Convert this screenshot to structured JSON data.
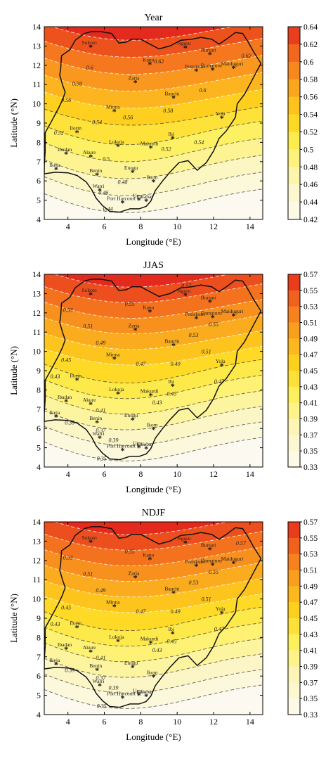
{
  "axes": {
    "xlabel": "Longitude (°E)",
    "ylabel": "Latitude (°N)",
    "x_ticks": [
      "4",
      "6",
      "8",
      "10",
      "12",
      "14"
    ],
    "y_ticks": [
      "4",
      "5",
      "6",
      "7",
      "8",
      "9",
      "10",
      "11",
      "12",
      "13",
      "14"
    ],
    "xlim": [
      2.7,
      14.7
    ],
    "ylim": [
      4,
      14
    ]
  },
  "cities": [
    {
      "name": "Sokoto",
      "lon": 5.25,
      "lat": 12.95
    },
    {
      "name": "Nguru",
      "lon": 10.45,
      "lat": 12.9
    },
    {
      "name": "Bursari",
      "lon": 11.8,
      "lat": 12.55
    },
    {
      "name": "Kano",
      "lon": 8.5,
      "lat": 12.05
    },
    {
      "name": "Potiskum",
      "lon": 11.05,
      "lat": 11.7
    },
    {
      "name": "Damaturu",
      "lon": 11.95,
      "lat": 11.75
    },
    {
      "name": "Maiduguri",
      "lon": 13.1,
      "lat": 11.85
    },
    {
      "name": "Zaria",
      "lon": 7.7,
      "lat": 11.1
    },
    {
      "name": "Bauchi",
      "lon": 9.8,
      "lat": 10.3
    },
    {
      "name": "Minna",
      "lon": 6.55,
      "lat": 9.6
    },
    {
      "name": "Yola",
      "lon": 12.45,
      "lat": 9.25
    },
    {
      "name": "Ilorin",
      "lon": 4.5,
      "lat": 8.5
    },
    {
      "name": "Ibi",
      "lon": 9.75,
      "lat": 8.2
    },
    {
      "name": "Lokoja",
      "lon": 6.75,
      "lat": 7.8
    },
    {
      "name": "Makurdi",
      "lon": 8.55,
      "lat": 7.7
    },
    {
      "name": "Ibadan",
      "lon": 3.9,
      "lat": 7.4
    },
    {
      "name": "Akure",
      "lon": 5.25,
      "lat": 7.25
    },
    {
      "name": "Ikeja",
      "lon": 3.35,
      "lat": 6.6
    },
    {
      "name": "Enugu",
      "lon": 7.55,
      "lat": 6.45
    },
    {
      "name": "Benin",
      "lon": 5.6,
      "lat": 6.3
    },
    {
      "name": "Ikom",
      "lon": 8.7,
      "lat": 5.95
    },
    {
      "name": "Warri",
      "lon": 5.75,
      "lat": 5.5
    },
    {
      "name": "Uyo",
      "lon": 7.9,
      "lat": 5.0
    },
    {
      "name": "Calabar",
      "lon": 8.3,
      "lat": 4.95
    },
    {
      "name": "Port Harcourt",
      "lon": 7.0,
      "lat": 4.85
    }
  ],
  "panels": [
    {
      "title": "Year",
      "colorbar_ticks": [
        "0.64",
        "0.62",
        "0.6",
        "0.58",
        "0.56",
        "0.54",
        "0.52",
        "0.5",
        "0.48",
        "0.46",
        "0.44",
        "0.42"
      ],
      "color_low": "#fbf9ee",
      "color_high": "#e8301e",
      "contour_labels": [
        {
          "text": "0.62",
          "lon": 9.0,
          "lat": 12.1
        },
        {
          "text": "0.62",
          "lon": 13.8,
          "lat": 12.4
        },
        {
          "text": "0.6",
          "lon": 5.2,
          "lat": 11.8
        },
        {
          "text": "0.6",
          "lon": 11.4,
          "lat": 10.6
        },
        {
          "text": "0.58",
          "lon": 4.5,
          "lat": 10.95
        },
        {
          "text": "0.58",
          "lon": 9.5,
          "lat": 9.55
        },
        {
          "text": "0.56",
          "lon": 3.9,
          "lat": 10.1
        },
        {
          "text": "0.56",
          "lon": 7.3,
          "lat": 9.2
        },
        {
          "text": "0.54",
          "lon": 5.6,
          "lat": 8.95
        },
        {
          "text": "0.54",
          "lon": 11.2,
          "lat": 7.9
        },
        {
          "text": "0.52",
          "lon": 3.5,
          "lat": 8.4
        },
        {
          "text": "0.52",
          "lon": 9.4,
          "lat": 7.55
        },
        {
          "text": "0.5",
          "lon": 6.1,
          "lat": 7.05
        },
        {
          "text": "0.48",
          "lon": 7.0,
          "lat": 5.85
        },
        {
          "text": "0.46",
          "lon": 5.95,
          "lat": 5.3
        },
        {
          "text": "0.44",
          "lon": 6.2,
          "lat": 4.45
        }
      ]
    },
    {
      "title": "JJAS",
      "colorbar_ticks": [
        "0.57",
        "0.55",
        "0.53",
        "0.51",
        "0.49",
        "0.47",
        "0.45",
        "0.43",
        "0.41",
        "0.39",
        "0.37",
        "0.35",
        "0.33"
      ],
      "color_low": "#fcfaf0",
      "color_high": "#e32a1d",
      "contour_labels": [
        {
          "text": "0.57",
          "lon": 10.5,
          "lat": 13.3
        },
        {
          "text": "0.55",
          "lon": 7.4,
          "lat": 12.35
        },
        {
          "text": "0.55",
          "lon": 12.0,
          "lat": 11.3
        },
        {
          "text": "0.53",
          "lon": 4.0,
          "lat": 12.05
        },
        {
          "text": "0.53",
          "lon": 10.9,
          "lat": 10.75
        },
        {
          "text": "0.51",
          "lon": 5.1,
          "lat": 11.2
        },
        {
          "text": "0.51",
          "lon": 11.6,
          "lat": 9.9
        },
        {
          "text": "0.49",
          "lon": 5.8,
          "lat": 10.35
        },
        {
          "text": "0.49",
          "lon": 9.9,
          "lat": 9.25
        },
        {
          "text": "0.47",
          "lon": 8.0,
          "lat": 9.25
        },
        {
          "text": "0.47",
          "lon": 12.3,
          "lat": 8.35
        },
        {
          "text": "0.45",
          "lon": 3.9,
          "lat": 9.45
        },
        {
          "text": "0.45",
          "lon": 9.7,
          "lat": 7.7
        },
        {
          "text": "0.43",
          "lon": 3.3,
          "lat": 8.6
        },
        {
          "text": "0.43",
          "lon": 8.9,
          "lat": 7.25
        },
        {
          "text": "0.41",
          "lon": 5.8,
          "lat": 6.85
        },
        {
          "text": "0.39",
          "lon": 4.1,
          "lat": 6.2
        },
        {
          "text": "0.39",
          "lon": 6.5,
          "lat": 5.3
        },
        {
          "text": "0.37",
          "lon": 5.8,
          "lat": 5.8
        },
        {
          "text": "0.35",
          "lon": 5.85,
          "lat": 4.35
        }
      ]
    },
    {
      "title": "NDJF",
      "colorbar_ticks": [
        "0.57",
        "0.55",
        "0.53",
        "0.51",
        "0.49",
        "0.47",
        "0.45",
        "0.43",
        "0.41",
        "0.39",
        "0.37",
        "0.35",
        "0.33"
      ],
      "color_low": "#fcfaf0",
      "color_high": "#e32a1d",
      "contour_labels": [
        {
          "text": "0.57",
          "lon": 13.5,
          "lat": 12.8
        },
        {
          "text": "0.55",
          "lon": 7.4,
          "lat": 12.35
        },
        {
          "text": "0.55",
          "lon": 12.0,
          "lat": 11.3
        },
        {
          "text": "0.53",
          "lon": 4.0,
          "lat": 12.05
        },
        {
          "text": "0.53",
          "lon": 10.9,
          "lat": 10.75
        },
        {
          "text": "0.51",
          "lon": 5.1,
          "lat": 11.2
        },
        {
          "text": "0.51",
          "lon": 11.6,
          "lat": 9.9
        },
        {
          "text": "0.49",
          "lon": 5.8,
          "lat": 10.35
        },
        {
          "text": "0.49",
          "lon": 9.9,
          "lat": 9.25
        },
        {
          "text": "0.47",
          "lon": 8.0,
          "lat": 9.25
        },
        {
          "text": "0.47",
          "lon": 12.3,
          "lat": 8.35
        },
        {
          "text": "0.45",
          "lon": 3.9,
          "lat": 9.45
        },
        {
          "text": "0.45",
          "lon": 9.7,
          "lat": 7.7
        },
        {
          "text": "0.43",
          "lon": 3.3,
          "lat": 8.6
        },
        {
          "text": "0.43",
          "lon": 8.9,
          "lat": 7.25
        },
        {
          "text": "0.41",
          "lon": 5.8,
          "lat": 6.85
        },
        {
          "text": "0.39",
          "lon": 4.1,
          "lat": 6.2
        },
        {
          "text": "0.39",
          "lon": 6.5,
          "lat": 5.3
        },
        {
          "text": "0.37",
          "lon": 5.8,
          "lat": 5.8
        },
        {
          "text": "0.35",
          "lon": 5.85,
          "lat": 4.35
        }
      ]
    }
  ]
}
